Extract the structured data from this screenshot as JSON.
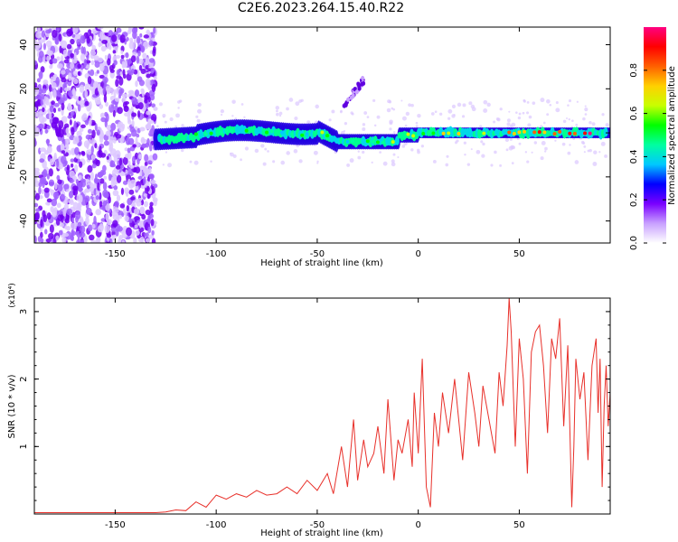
{
  "title": "C2E6.2023.264.15.40.R22",
  "chart_data": [
    {
      "type": "heatmap",
      "xlabel": "Height of straight line (km)",
      "ylabel": "Frequency (Hz)",
      "xlim": [
        -190,
        95
      ],
      "ylim": [
        -50,
        48
      ],
      "x_ticks": [
        -150,
        -100,
        -50,
        0,
        50
      ],
      "y_ticks": [
        -40,
        -20,
        0,
        20,
        40
      ],
      "grid": false,
      "colorbar": {
        "label": "Normalized spectral amplitude",
        "range": [
          0.0,
          1.0
        ],
        "ticks": [
          0.0,
          0.2,
          0.4,
          0.6,
          0.8
        ],
        "colors": [
          "#ffffff",
          "#c8a0ff",
          "#7a00ff",
          "#0000ff",
          "#00c8ff",
          "#00ffa0",
          "#00ff00",
          "#c8ff00",
          "#ffd000",
          "#ff6000",
          "#ff0000",
          "#ff0080"
        ]
      },
      "features": [
        {
          "label": "noise",
          "x_range": [
            -190,
            -130
          ],
          "freq_range": [
            -50,
            48
          ],
          "amplitude": 0.15
        },
        {
          "label": "signal band",
          "x_range": [
            -130,
            95
          ],
          "center_freq": 0,
          "amplitude_range": [
            0.2,
            0.95
          ]
        },
        {
          "label": "sideband",
          "x_range": [
            -37,
            -27
          ],
          "freq_range": [
            12,
            24
          ]
        }
      ]
    },
    {
      "type": "line",
      "xlabel": "Height of straight line (km)",
      "ylabel": "SNR (10 * v/v)",
      "y_multiplier": "(x10⁴)",
      "xlim": [
        -190,
        95
      ],
      "ylim": [
        0,
        3.2
      ],
      "x_ticks": [
        -150,
        -100,
        -50,
        0,
        50
      ],
      "y_ticks": [
        1,
        2,
        3
      ],
      "line_color": "#e8302a",
      "grid": false,
      "series": [
        {
          "x": [
            -190,
            -170,
            -150,
            -130,
            -125,
            -120,
            -115,
            -110,
            -105,
            -100,
            -95,
            -90,
            -85,
            -80,
            -75,
            -70,
            -65,
            -60,
            -55,
            -50,
            -45,
            -42,
            -38,
            -35,
            -32,
            -30,
            -27,
            -25,
            -22,
            -20,
            -17,
            -15,
            -12,
            -10,
            -8,
            -5,
            -3,
            -2,
            0,
            2,
            4,
            6,
            8,
            10,
            12,
            15,
            18,
            20,
            22,
            25,
            28,
            30,
            32,
            35,
            38,
            40,
            42,
            44,
            45,
            46,
            48,
            50,
            52,
            54,
            56,
            58,
            60,
            62,
            64,
            66,
            68,
            70,
            72,
            74,
            76,
            77,
            78,
            80,
            82,
            84,
            86,
            88,
            89,
            90,
            91,
            92,
            93,
            94,
            95
          ],
          "y": [
            0.02,
            0.02,
            0.02,
            0.02,
            0.03,
            0.06,
            0.05,
            0.18,
            0.1,
            0.28,
            0.22,
            0.3,
            0.25,
            0.35,
            0.28,
            0.3,
            0.4,
            0.3,
            0.5,
            0.35,
            0.6,
            0.3,
            1.0,
            0.4,
            1.4,
            0.5,
            1.1,
            0.7,
            0.9,
            1.3,
            0.6,
            1.7,
            0.5,
            1.1,
            0.9,
            1.4,
            0.7,
            1.8,
            0.9,
            2.3,
            0.4,
            0.1,
            1.5,
            1.0,
            1.8,
            1.2,
            2.0,
            1.4,
            0.8,
            2.1,
            1.5,
            1.0,
            1.9,
            1.4,
            0.9,
            2.1,
            1.6,
            2.5,
            3.2,
            2.7,
            1.0,
            2.6,
            2.0,
            0.6,
            2.4,
            2.7,
            2.8,
            2.2,
            1.2,
            2.6,
            2.3,
            2.9,
            1.3,
            2.5,
            0.1,
            1.0,
            2.3,
            1.7,
            2.1,
            0.8,
            2.2,
            2.6,
            1.5,
            2.3,
            0.4,
            1.6,
            2.2,
            1.3,
            1.8
          ]
        }
      ]
    }
  ]
}
